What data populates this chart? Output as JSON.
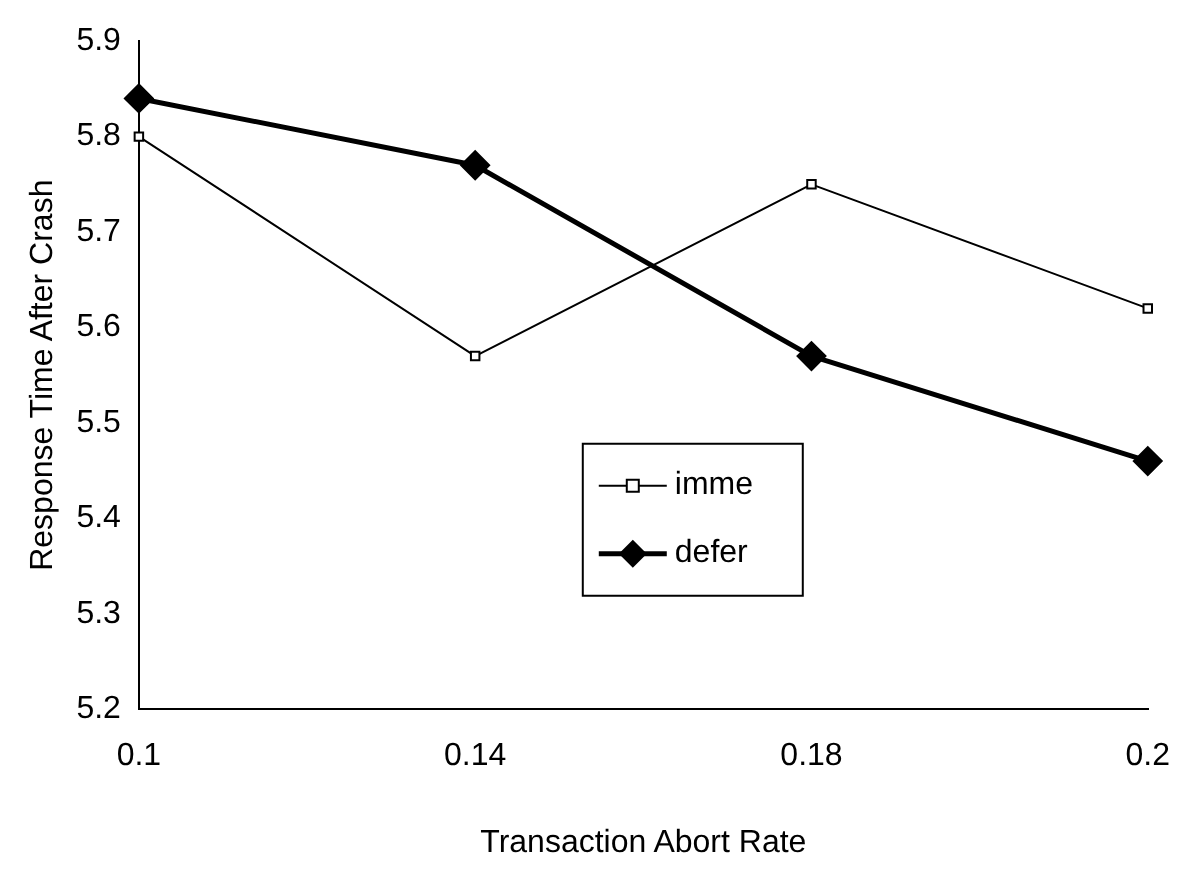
{
  "chart_data": {
    "type": "line",
    "xlabel": "Transaction Abort Rate",
    "ylabel": "Response Time After Crash",
    "categories": [
      "0.1",
      "0.14",
      "0.18",
      "0.2"
    ],
    "series": [
      {
        "name": "imme",
        "color": "#000000",
        "marker": "square",
        "values": [
          5.8,
          5.57,
          5.75,
          5.62
        ]
      },
      {
        "name": "defer",
        "color": "#000000",
        "marker": "diamond",
        "values": [
          5.84,
          5.77,
          5.57,
          5.46
        ]
      }
    ],
    "ylim": [
      5.2,
      5.9
    ],
    "yticks": [
      5.2,
      5.3,
      5.4,
      5.5,
      5.6,
      5.7,
      5.8,
      5.9
    ],
    "grid": false,
    "legend": "bottom"
  }
}
